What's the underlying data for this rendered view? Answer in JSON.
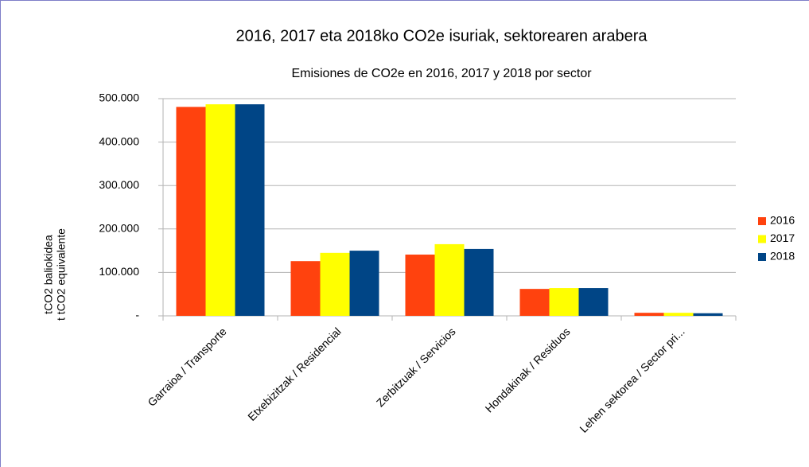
{
  "chart_data": {
    "type": "bar",
    "title": "2016, 2017 eta 2018ko CO2e isuriak, sektorearen arabera",
    "subtitle": "Emisiones de CO2e en 2016,  2017 y 2018 por sector",
    "ylabel": [
      "tCO2 baliokidea",
      "t tCO2 equivalente"
    ],
    "categories": [
      "Garraioa / Transporte",
      "Etxebizitzak / Residencial",
      "Zerbitzuak / Servicios",
      "Hondakinak / Residuos",
      "Lehen sektorea / Sector pri..."
    ],
    "series": [
      {
        "name": "2016",
        "color": "#ff420e",
        "values": [
          481000,
          126000,
          141000,
          62000,
          7000
        ]
      },
      {
        "name": "2017",
        "color": "#ffff00",
        "values": [
          487000,
          145000,
          165000,
          64000,
          7000
        ]
      },
      {
        "name": "2018",
        "color": "#004586",
        "values": [
          487000,
          150000,
          154000,
          64000,
          6000
        ]
      }
    ],
    "ylim": [
      0,
      500000
    ],
    "yticks": [
      {
        "value": 0,
        "label": "-"
      },
      {
        "value": 100000,
        "label": "100.000"
      },
      {
        "value": 200000,
        "label": "200.000"
      },
      {
        "value": 300000,
        "label": "300.000"
      },
      {
        "value": 400000,
        "label": "400.000"
      },
      {
        "value": 500000,
        "label": "500.000"
      }
    ],
    "grid": true,
    "legend": "right"
  }
}
